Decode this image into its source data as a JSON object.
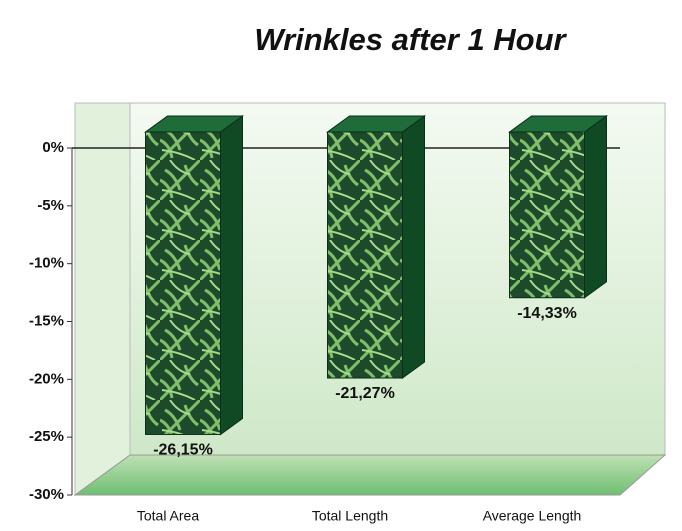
{
  "chart_data": {
    "type": "bar3d",
    "title": "Wrinkles after 1 Hour",
    "categories": [
      "Total Area",
      "Total Length",
      "Average Length"
    ],
    "values": [
      -26.15,
      -21.27,
      -14.33
    ],
    "value_labels": [
      "-26,15%",
      "-21,27%",
      "-14,33%"
    ],
    "color": "#1f6b3a",
    "ylim": [
      -30,
      0
    ],
    "yticks": [
      {
        "value": 0,
        "label": "0%"
      },
      {
        "value": -5,
        "label": "-5%"
      },
      {
        "value": -10,
        "label": "-10%"
      },
      {
        "value": -15,
        "label": "-15%"
      },
      {
        "value": -20,
        "label": "-20%"
      },
      {
        "value": -25,
        "label": "-25%"
      },
      {
        "value": -30,
        "label": "-30%"
      }
    ]
  }
}
